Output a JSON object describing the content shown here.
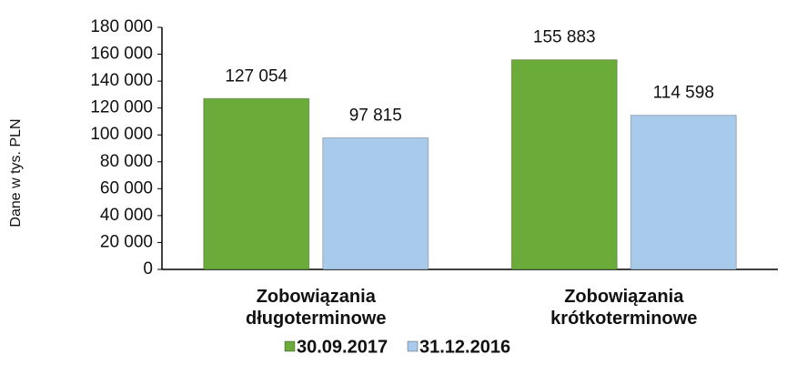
{
  "chart_data": {
    "type": "bar",
    "y_label": "Dane w tys. PLN",
    "categories": [
      "Zobowiązania długoterminowe",
      "Zobowiązania krótkoterminowe"
    ],
    "series": [
      {
        "name": "30.09.2017",
        "color": "#6aab3a",
        "values": [
          127054,
          155883
        ],
        "value_labels": [
          "127 054",
          "155 883"
        ]
      },
      {
        "name": "31.12.2016",
        "color": "#a9cbeb",
        "values": [
          97815,
          114598
        ],
        "value_labels": [
          "97 815",
          "114 598"
        ]
      }
    ],
    "ylim": [
      0,
      180000
    ],
    "yticks": [
      0,
      {
        "value": 20000,
        "label": "20 000"
      },
      {
        "value": 40000,
        "label": "40 000"
      },
      {
        "value": 60000,
        "label": "60 000"
      },
      {
        "value": 80000,
        "label": "80 000"
      },
      {
        "value": 100000,
        "label": "100 000"
      },
      {
        "value": 120000,
        "label": "120 000"
      },
      {
        "value": 140000,
        "label": "140 000"
      },
      {
        "value": 160000,
        "label": "160 000"
      },
      {
        "value": 180000,
        "label": "180 000"
      }
    ],
    "legend": "bottom"
  }
}
